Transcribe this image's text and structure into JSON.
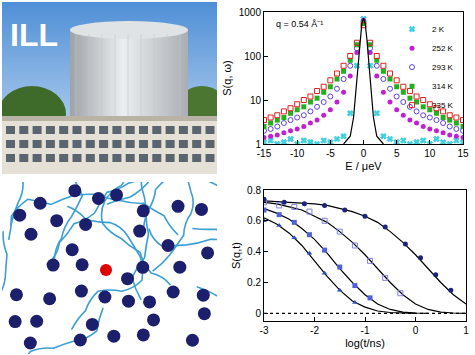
{
  "chart_data": [
    {
      "type": "scatter",
      "xlabel": "E / μeV",
      "ylabel": "S(q, ω)",
      "annotations": [
        "q = 0.54 Å⁻¹"
      ],
      "xlim": [
        -15,
        15
      ],
      "xticks": [
        -15,
        -10,
        -5,
        0,
        5,
        10,
        15
      ],
      "ylim": [
        1,
        1000
      ],
      "yticks": [
        1,
        10,
        100,
        1000
      ],
      "log": "y",
      "legend": "top right",
      "series": [
        {
          "name": "2 K",
          "type": "scatter",
          "marker": "x",
          "color": "#40d0e0",
          "x": [
            -15,
            -14,
            -13,
            -12,
            -11,
            -10,
            -9,
            -8,
            -7,
            -6,
            -5,
            -4,
            -3,
            -2,
            -1,
            0,
            1,
            2,
            3,
            4,
            5,
            6,
            7,
            8,
            9,
            10,
            11,
            12,
            13,
            14,
            15
          ],
          "values": [
            1.1,
            1.2,
            1,
            1.1,
            1.3,
            1,
            1.2,
            1.1,
            1,
            1.2,
            1.1,
            1.3,
            1.5,
            5,
            60,
            700,
            60,
            5,
            1.5,
            1.3,
            1.1,
            1.2,
            1,
            1.1,
            1.2,
            1,
            1.3,
            1.1,
            1,
            1.2,
            1.1
          ]
        },
        {
          "name": "252 K",
          "type": "scatter",
          "marker": "circle",
          "color": "#c020d0",
          "x": [
            -15,
            -14,
            -13,
            -12,
            -11,
            -10,
            -9,
            -8,
            -7,
            -6,
            -5,
            -4,
            -3,
            -2,
            -1,
            0,
            1,
            2,
            3,
            4,
            5,
            6,
            7,
            8,
            9,
            10,
            11,
            12,
            13,
            14,
            15
          ],
          "values": [
            1.4,
            1.5,
            1.6,
            1.8,
            2,
            2.2,
            2.5,
            3,
            3.5,
            4.5,
            6,
            9,
            15,
            35,
            120,
            650,
            120,
            35,
            15,
            9,
            6,
            4.5,
            3.5,
            3,
            2.5,
            2.2,
            2,
            1.8,
            1.6,
            1.5,
            1.4
          ]
        },
        {
          "name": "293 K",
          "type": "scatter",
          "marker": "circle-open",
          "color": "#6040e0",
          "x": [
            -15,
            -14,
            -13,
            -12,
            -11,
            -10,
            -9,
            -8,
            -7,
            -6,
            -5,
            -4,
            -3,
            -2,
            -1,
            0,
            1,
            2,
            3,
            4,
            5,
            6,
            7,
            8,
            9,
            10,
            11,
            12,
            13,
            14,
            15
          ],
          "values": [
            2,
            2.2,
            2.5,
            3,
            3.5,
            4,
            4.5,
            5.5,
            7,
            9,
            12,
            18,
            30,
            60,
            150,
            600,
            150,
            60,
            30,
            18,
            12,
            9,
            7,
            5.5,
            4.5,
            4,
            3.5,
            3,
            2.5,
            2.2,
            2
          ]
        },
        {
          "name": "314 K",
          "type": "scatter",
          "marker": "square",
          "color": "#20b020",
          "x": [
            -15,
            -14,
            -13,
            -12,
            -11,
            -10,
            -9,
            -8,
            -7,
            -6,
            -5,
            -4,
            -3,
            -2,
            -1,
            0,
            1,
            2,
            3,
            4,
            5,
            6,
            7,
            8,
            9,
            10,
            11,
            12,
            13,
            14,
            15
          ],
          "values": [
            2.5,
            3,
            3.5,
            4,
            5,
            6,
            7,
            9,
            11,
            15,
            20,
            30,
            45,
            80,
            180,
            550,
            180,
            80,
            45,
            30,
            20,
            15,
            11,
            9,
            7,
            6,
            5,
            4,
            3.5,
            3,
            2.5
          ]
        },
        {
          "name": "335 K",
          "type": "scatter",
          "marker": "square-open",
          "color": "#e02020",
          "x": [
            -15,
            -14,
            -13,
            -12,
            -11,
            -10,
            -9,
            -8,
            -7,
            -6,
            -5,
            -4,
            -3,
            -2,
            -1,
            0,
            1,
            2,
            3,
            4,
            5,
            6,
            7,
            8,
            9,
            10,
            11,
            12,
            13,
            14,
            15
          ],
          "values": [
            3.5,
            4,
            4.5,
            5.5,
            6.5,
            8,
            10,
            12,
            16,
            20,
            28,
            40,
            60,
            100,
            200,
            500,
            200,
            100,
            60,
            40,
            28,
            20,
            16,
            12,
            10,
            8,
            6.5,
            5.5,
            4.5,
            4,
            3.5
          ]
        },
        {
          "type": "line",
          "line_style": "solid",
          "color": "#000000",
          "x": [
            -3,
            -2,
            -1.5,
            -1,
            -0.75,
            -0.5,
            -0.25,
            0,
            0.25,
            0.5,
            0.75,
            1,
            1.5,
            2,
            3
          ],
          "values": [
            1,
            1.5,
            4,
            30,
            90,
            250,
            550,
            720,
            550,
            250,
            90,
            30,
            4,
            1.5,
            1
          ]
        }
      ]
    },
    {
      "type": "scatter",
      "xlabel": "log(t/ns)",
      "ylabel": "S(q,t)",
      "xlim": [
        -3,
        1
      ],
      "xticks": [
        -3,
        -2,
        -1,
        0,
        1
      ],
      "ylim": [
        -0.05,
        0.8
      ],
      "yticks": [
        0,
        0.2,
        0.4,
        0.6,
        0.8
      ],
      "series": [
        {
          "type": "line",
          "line_style": "dotted",
          "color": "#000000",
          "x": [
            -3,
            1
          ],
          "values": [
            0,
            0
          ]
        },
        {
          "type": "line",
          "line_style": "solid",
          "color": "#000000",
          "x": [
            -3,
            -2.75,
            -2.5,
            -2.25,
            -2,
            -1.75,
            -1.5,
            -1.25,
            -1,
            -0.75,
            -0.5,
            -0.25,
            0
          ],
          "values": [
            0.62,
            0.58,
            0.52,
            0.44,
            0.34,
            0.24,
            0.15,
            0.08,
            0.04,
            0.015,
            0.005,
            0.001,
            0
          ]
        },
        {
          "type": "line",
          "line_style": "solid",
          "color": "#000000",
          "x": [
            -3,
            -2.75,
            -2.5,
            -2.25,
            -2,
            -1.75,
            -1.5,
            -1.25,
            -1,
            -0.75,
            -0.5,
            -0.25,
            0,
            0.25
          ],
          "values": [
            0.68,
            0.65,
            0.61,
            0.55,
            0.48,
            0.39,
            0.29,
            0.2,
            0.12,
            0.06,
            0.025,
            0.008,
            0.002,
            0
          ]
        },
        {
          "type": "line",
          "line_style": "solid",
          "color": "#000000",
          "x": [
            -3,
            -2.75,
            -2.5,
            -2.25,
            -2,
            -1.75,
            -1.5,
            -1.25,
            -1,
            -0.75,
            -0.5,
            -0.25,
            0,
            0.25,
            0.5,
            0.75,
            1
          ],
          "values": [
            0.72,
            0.71,
            0.69,
            0.67,
            0.63,
            0.59,
            0.53,
            0.46,
            0.38,
            0.29,
            0.2,
            0.12,
            0.06,
            0.025,
            0.008,
            0.002,
            0
          ]
        },
        {
          "type": "line",
          "line_style": "solid",
          "color": "#000000",
          "x": [
            -3,
            -2.5,
            -2,
            -1.75,
            -1.5,
            -1.25,
            -1,
            -0.75,
            -0.5,
            -0.25,
            0,
            0.25,
            0.5,
            0.75,
            1
          ],
          "values": [
            0.73,
            0.72,
            0.71,
            0.7,
            0.68,
            0.66,
            0.63,
            0.59,
            0.53,
            0.46,
            0.38,
            0.29,
            0.2,
            0.12,
            0.06
          ]
        },
        {
          "type": "scatter",
          "marker": "triangle-up",
          "color": "#3050c8",
          "x": [
            -3,
            -2.7,
            -2.4,
            -2.1,
            -1.8,
            -1.5,
            -1.2
          ],
          "values": [
            0.6,
            0.57,
            0.49,
            0.39,
            0.26,
            0.15,
            0.07
          ]
        },
        {
          "type": "scatter",
          "marker": "square",
          "color": "#5060d8",
          "x": [
            -3,
            -2.7,
            -2.4,
            -2.1,
            -1.8,
            -1.5,
            -1.2,
            -0.9
          ],
          "values": [
            0.67,
            0.64,
            0.59,
            0.51,
            0.41,
            0.3,
            0.18,
            0.1
          ]
        },
        {
          "type": "scatter",
          "marker": "square-open",
          "color": "#8080e8",
          "x": [
            -3,
            -2.7,
            -2.4,
            -2.1,
            -1.8,
            -1.5,
            -1.2,
            -0.9,
            -0.6,
            -0.3
          ],
          "values": [
            0.72,
            0.7,
            0.69,
            0.66,
            0.6,
            0.53,
            0.44,
            0.34,
            0.23,
            0.13
          ]
        },
        {
          "type": "scatter",
          "marker": "circle",
          "color": "#1a237e",
          "x": [
            -3,
            -2.6,
            -2.2,
            -1.8,
            -1.4,
            -1,
            -0.6,
            -0.2,
            0.1,
            0.4,
            0.7
          ],
          "values": [
            0.74,
            0.72,
            0.71,
            0.7,
            0.67,
            0.63,
            0.56,
            0.45,
            0.36,
            0.25,
            0.15
          ]
        }
      ]
    }
  ],
  "photo": {
    "label": "ILL"
  }
}
